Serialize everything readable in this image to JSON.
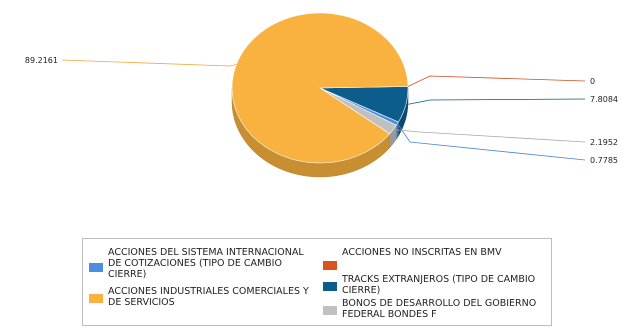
{
  "chart_data": {
    "type": "pie",
    "style": "3d",
    "slices": [
      {
        "label": "ACCIONES INDUSTRIALES COMERCIALES Y DE SERVICIOS",
        "value": 89.2161,
        "value_label": "89.2161",
        "color": "#F9B13F"
      },
      {
        "label": "ACCIONES NO INSCRITAS EN BMV",
        "value": 0,
        "value_label": "0",
        "color": "#D9531E"
      },
      {
        "label": "TRACKS EXTRANJEROS (TIPO DE CAMBIO CIERRE)",
        "value": 7.8084,
        "value_label": "7.8084",
        "color": "#0C5C8C"
      },
      {
        "label": "BONOS DE DESARROLLO DEL GOBIERNO FEDERAL BONDES F",
        "value": 2.1952,
        "value_label": "2.1952",
        "color": "#C0C0C0"
      },
      {
        "label": "ACCIONES DEL SISTEMA INTERNACIONAL DE COTIZACIONES (TIPO DE CAMBIO CIERRE)",
        "value": 0.7785,
        "value_label": "0.7785",
        "color": "#4A8FE0"
      }
    ],
    "legend": {
      "position": "bottom",
      "items": [
        {
          "label": "ACCIONES DEL SISTEMA INTERNACIONAL DE COTIZACIONES (TIPO DE CAMBIO CIERRE)",
          "color": "#4A8FE0"
        },
        {
          "label": "ACCIONES INDUSTRIALES COMERCIALES Y DE SERVICIOS",
          "color": "#F9B13F"
        },
        {
          "label": "ACCIONES NO INSCRITAS EN BMV",
          "color": "#D9531E"
        },
        {
          "label": "TRACKS EXTRANJEROS (TIPO DE CAMBIO CIERRE)",
          "color": "#0C5C8C"
        },
        {
          "label": "BONOS DE DESARROLLO DEL GOBIERNO FEDERAL BONDES F",
          "color": "#C0C0C0"
        }
      ]
    }
  }
}
